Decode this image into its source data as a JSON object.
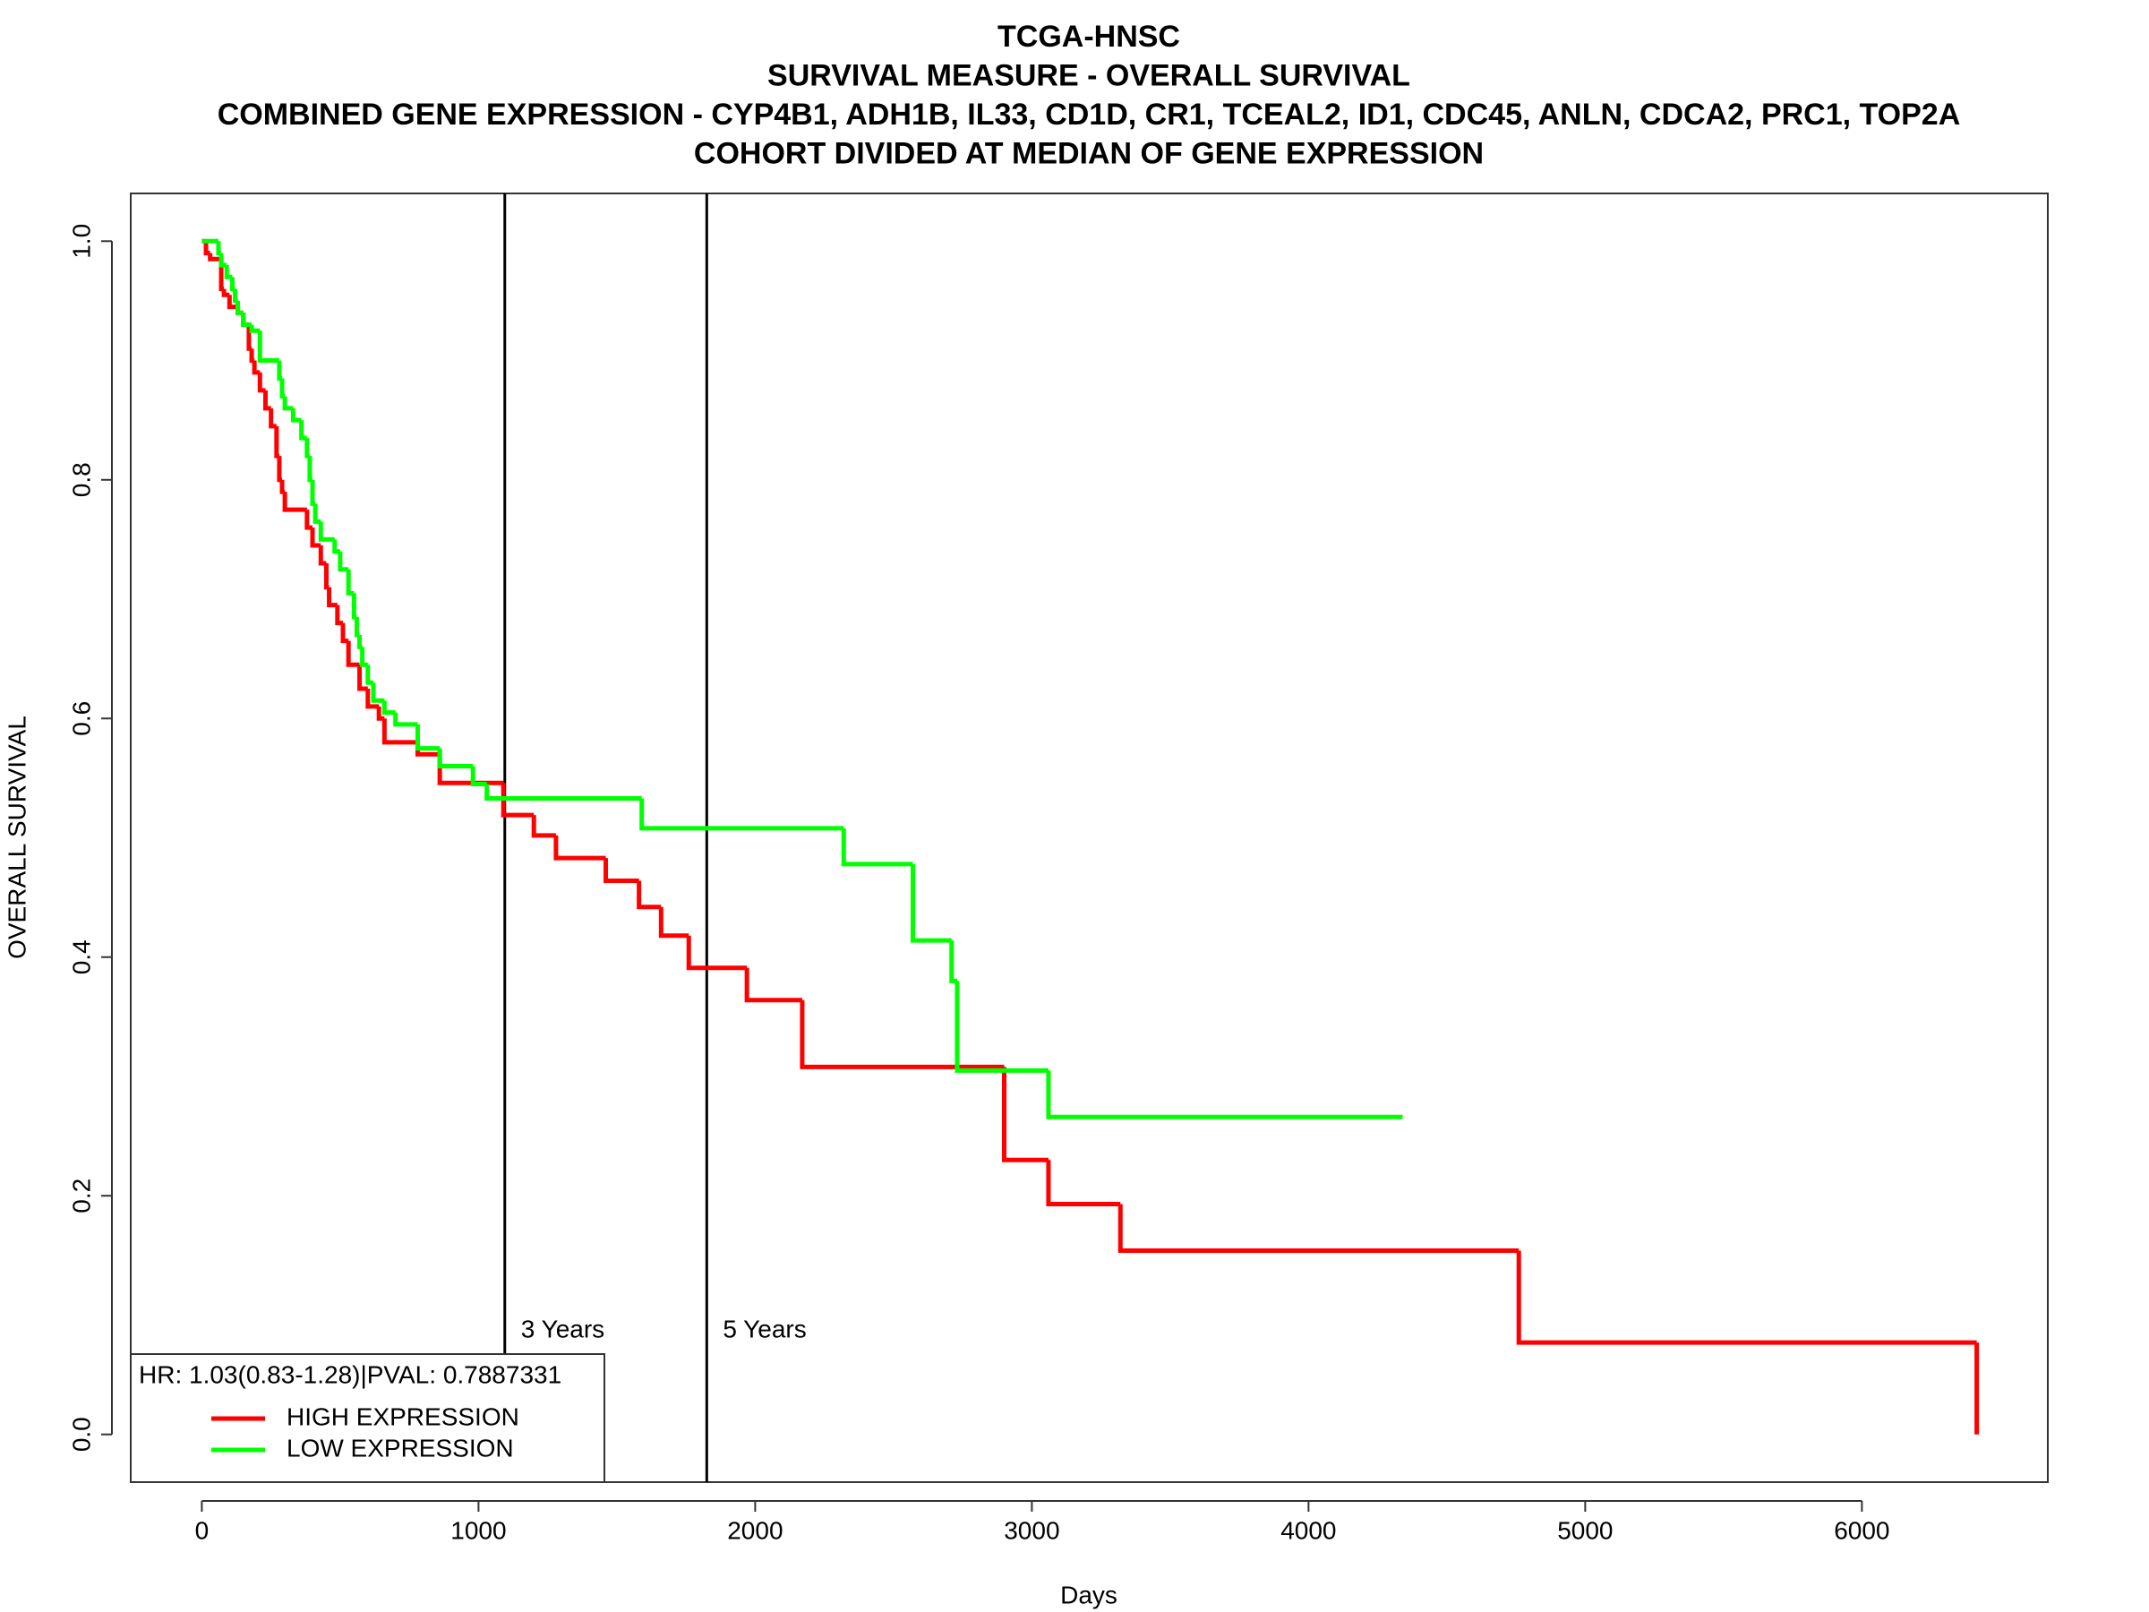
{
  "chart_data": {
    "type": "step",
    "title": [
      "TCGA-HNSC",
      "SURVIVAL MEASURE -  OVERALL SURVIVAL",
      "COMBINED GENE EXPRESSION -  CYP4B1, ADH1B, IL33, CD1D, CR1, TCEAL2, ID1, CDC45, ANLN, CDCA2, PRC1, TOP2A",
      "COHORT DIVIDED AT MEDIAN OF GENE EXPRESSION"
    ],
    "x_label": "Days",
    "y_label": "OVERALL SURVIVAL",
    "xlim": [
      -257,
      6672
    ],
    "ylim": [
      -0.04,
      1.04
    ],
    "xticks": [
      0,
      1000,
      2000,
      3000,
      4000,
      5000,
      6000
    ],
    "yticks": [
      {
        "value": 0,
        "label": "0.0"
      },
      0.2,
      0.4,
      0.6,
      0.8,
      {
        "value": 1,
        "label": "1.0"
      }
    ],
    "vlines": [
      {
        "x": 1095,
        "label": "3 Years"
      },
      {
        "x": 1825,
        "label": "5 Years"
      }
    ],
    "legend_title": "HR: 1.03(0.83-1.28)|PVAL: 0.7887331",
    "legend_position": "bottom-left",
    "series": [
      {
        "name": "HIGH EXPRESSION",
        "color": "#ff0000",
        "x": [
          0,
          15,
          30,
          70,
          80,
          100,
          130,
          150,
          170,
          180,
          190,
          210,
          230,
          250,
          270,
          280,
          290,
          300,
          380,
          400,
          430,
          450,
          460,
          490,
          510,
          530,
          570,
          600,
          640,
          660,
          780,
          860,
          1090,
          1200,
          1280,
          1460,
          1580,
          1660,
          1760,
          1970,
          2170,
          2900,
          3060,
          3320,
          4760,
          6415
        ],
        "values": [
          1.0,
          0.99,
          0.985,
          0.96,
          0.955,
          0.945,
          0.94,
          0.93,
          0.91,
          0.9,
          0.89,
          0.875,
          0.86,
          0.845,
          0.82,
          0.8,
          0.79,
          0.775,
          0.76,
          0.745,
          0.73,
          0.71,
          0.695,
          0.68,
          0.665,
          0.645,
          0.625,
          0.61,
          0.6,
          0.58,
          0.57,
          0.546,
          0.519,
          0.502,
          0.483,
          0.464,
          0.442,
          0.418,
          0.391,
          0.364,
          0.308,
          0.23,
          0.193,
          0.154,
          0.077,
          0
        ]
      },
      {
        "name": "LOW EXPRESSION",
        "color": "#00ff00",
        "x": [
          0,
          60,
          70,
          90,
          110,
          120,
          130,
          150,
          180,
          210,
          280,
          290,
          300,
          330,
          360,
          380,
          390,
          400,
          410,
          430,
          480,
          500,
          530,
          550,
          560,
          570,
          580,
          600,
          620,
          660,
          700,
          780,
          860,
          980,
          1030,
          1590,
          2320,
          2570,
          2710,
          2730,
          3060,
          4340
        ],
        "values": [
          1.0,
          0.99,
          0.98,
          0.97,
          0.96,
          0.95,
          0.94,
          0.93,
          0.925,
          0.9,
          0.885,
          0.87,
          0.86,
          0.85,
          0.835,
          0.82,
          0.8,
          0.78,
          0.765,
          0.75,
          0.74,
          0.725,
          0.705,
          0.685,
          0.67,
          0.66,
          0.645,
          0.63,
          0.615,
          0.605,
          0.595,
          0.575,
          0.56,
          0.545,
          0.533,
          0.508,
          0.478,
          0.414,
          0.38,
          0.305,
          0.266,
          0.266
        ]
      }
    ]
  }
}
